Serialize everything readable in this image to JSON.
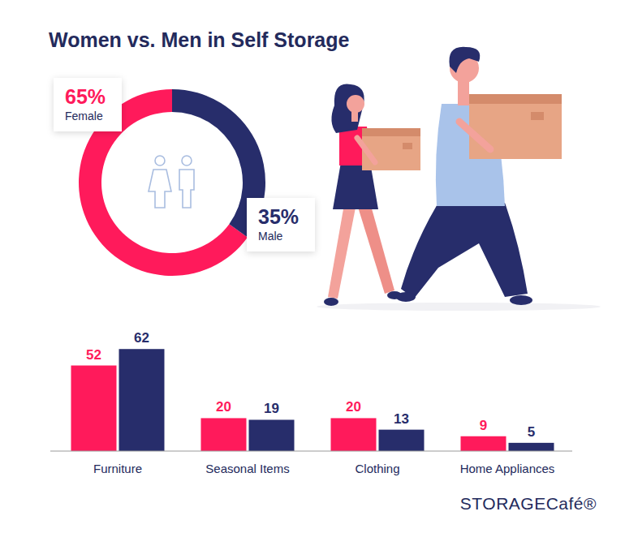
{
  "title": "Women vs. Men in Self Storage",
  "brand": "STORAGECafé®",
  "chart_data": [
    {
      "type": "pie",
      "categories": [
        "Female",
        "Male"
      ],
      "values": [
        65,
        35
      ],
      "value_labels": [
        "65%",
        "35%"
      ],
      "colors": [
        "#ff1a5b",
        "#272d6b"
      ],
      "data_labels": true
    },
    {
      "type": "bar",
      "categories": [
        "Furniture",
        "Seasonal Items",
        "Clothing",
        "Home Appliances"
      ],
      "series": [
        {
          "color": "#ff1a5b",
          "values": [
            52,
            20,
            20,
            9
          ]
        },
        {
          "color": "#272d6b",
          "values": [
            62,
            19,
            13,
            5
          ]
        }
      ],
      "ylim": [
        0,
        70
      ],
      "data_labels": true,
      "tick_labels": "x"
    }
  ]
}
